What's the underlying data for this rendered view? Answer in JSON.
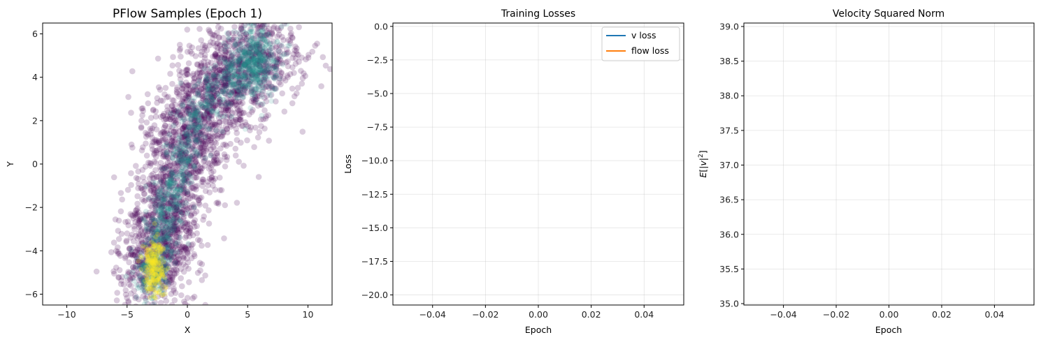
{
  "colors": {
    "v_loss": "#1f77b4",
    "flow_loss": "#ff7f0e",
    "scatter_low": "#440154",
    "scatter_mid": "#21918c",
    "scatter_high": "#fde725"
  },
  "chart_data": [
    {
      "type": "scatter",
      "title": "PFlow Samples (Epoch 1)",
      "xlabel": "X",
      "ylabel": "Y",
      "xlim": [
        -12,
        12
      ],
      "ylim": [
        -6.5,
        6.5
      ],
      "xticks": [
        -10,
        -5,
        0,
        5,
        10
      ],
      "xtick_labels": [
        "−10",
        "−5",
        "0",
        "5",
        "10"
      ],
      "yticks": [
        -6,
        -4,
        -2,
        0,
        2,
        4,
        6
      ],
      "ytick_labels": [
        "−6",
        "−4",
        "−2",
        "0",
        "2",
        "4",
        "6"
      ],
      "grid": false,
      "colormap": "viridis",
      "density_path": [
        [
          -3.0,
          -5.5
        ],
        [
          -2.5,
          -4.0
        ],
        [
          -1.5,
          -2.0
        ],
        [
          -0.5,
          0.0
        ],
        [
          0.5,
          2.0
        ],
        [
          2.5,
          3.5
        ],
        [
          5.0,
          4.5
        ],
        [
          6.5,
          5.5
        ]
      ]
    },
    {
      "type": "line",
      "title": "Training Losses",
      "xlabel": "Epoch",
      "ylabel": "Loss",
      "xlim": [
        -0.055,
        0.055
      ],
      "ylim": [
        -20.75,
        0.25
      ],
      "xticks": [
        -0.04,
        -0.02,
        0.0,
        0.02,
        0.04
      ],
      "xtick_labels": [
        "−0.04",
        "−0.02",
        "0.00",
        "0.02",
        "0.04"
      ],
      "yticks": [
        0,
        -2.5,
        -5,
        -7.5,
        -10,
        -12.5,
        -15,
        -17.5,
        -20
      ],
      "ytick_labels": [
        "0.0",
        "−2.5",
        "−5.0",
        "−7.5",
        "−10.0",
        "−12.5",
        "−15.0",
        "−17.5",
        "−20.0"
      ],
      "grid": true,
      "legend_position": "top-right",
      "series": [
        {
          "name": "v loss",
          "x": [],
          "y": []
        },
        {
          "name": "flow loss",
          "x": [],
          "y": []
        }
      ]
    },
    {
      "type": "line",
      "title": "Velocity Squared Norm",
      "xlabel": "Epoch",
      "ylabel": "E[|v|²]",
      "xlim": [
        -0.055,
        0.055
      ],
      "ylim": [
        34.98,
        39.05
      ],
      "xticks": [
        -0.04,
        -0.02,
        0.0,
        0.02,
        0.04
      ],
      "xtick_labels": [
        "−0.04",
        "−0.02",
        "0.00",
        "0.02",
        "0.04"
      ],
      "yticks": [
        35.0,
        35.5,
        36.0,
        36.5,
        37.0,
        37.5,
        38.0,
        38.5,
        39.0
      ],
      "ytick_labels": [
        "35.0",
        "35.5",
        "36.0",
        "36.5",
        "37.0",
        "37.5",
        "38.0",
        "38.5",
        "39.0"
      ],
      "grid": true,
      "series": [
        {
          "x": [],
          "y": []
        }
      ]
    }
  ]
}
